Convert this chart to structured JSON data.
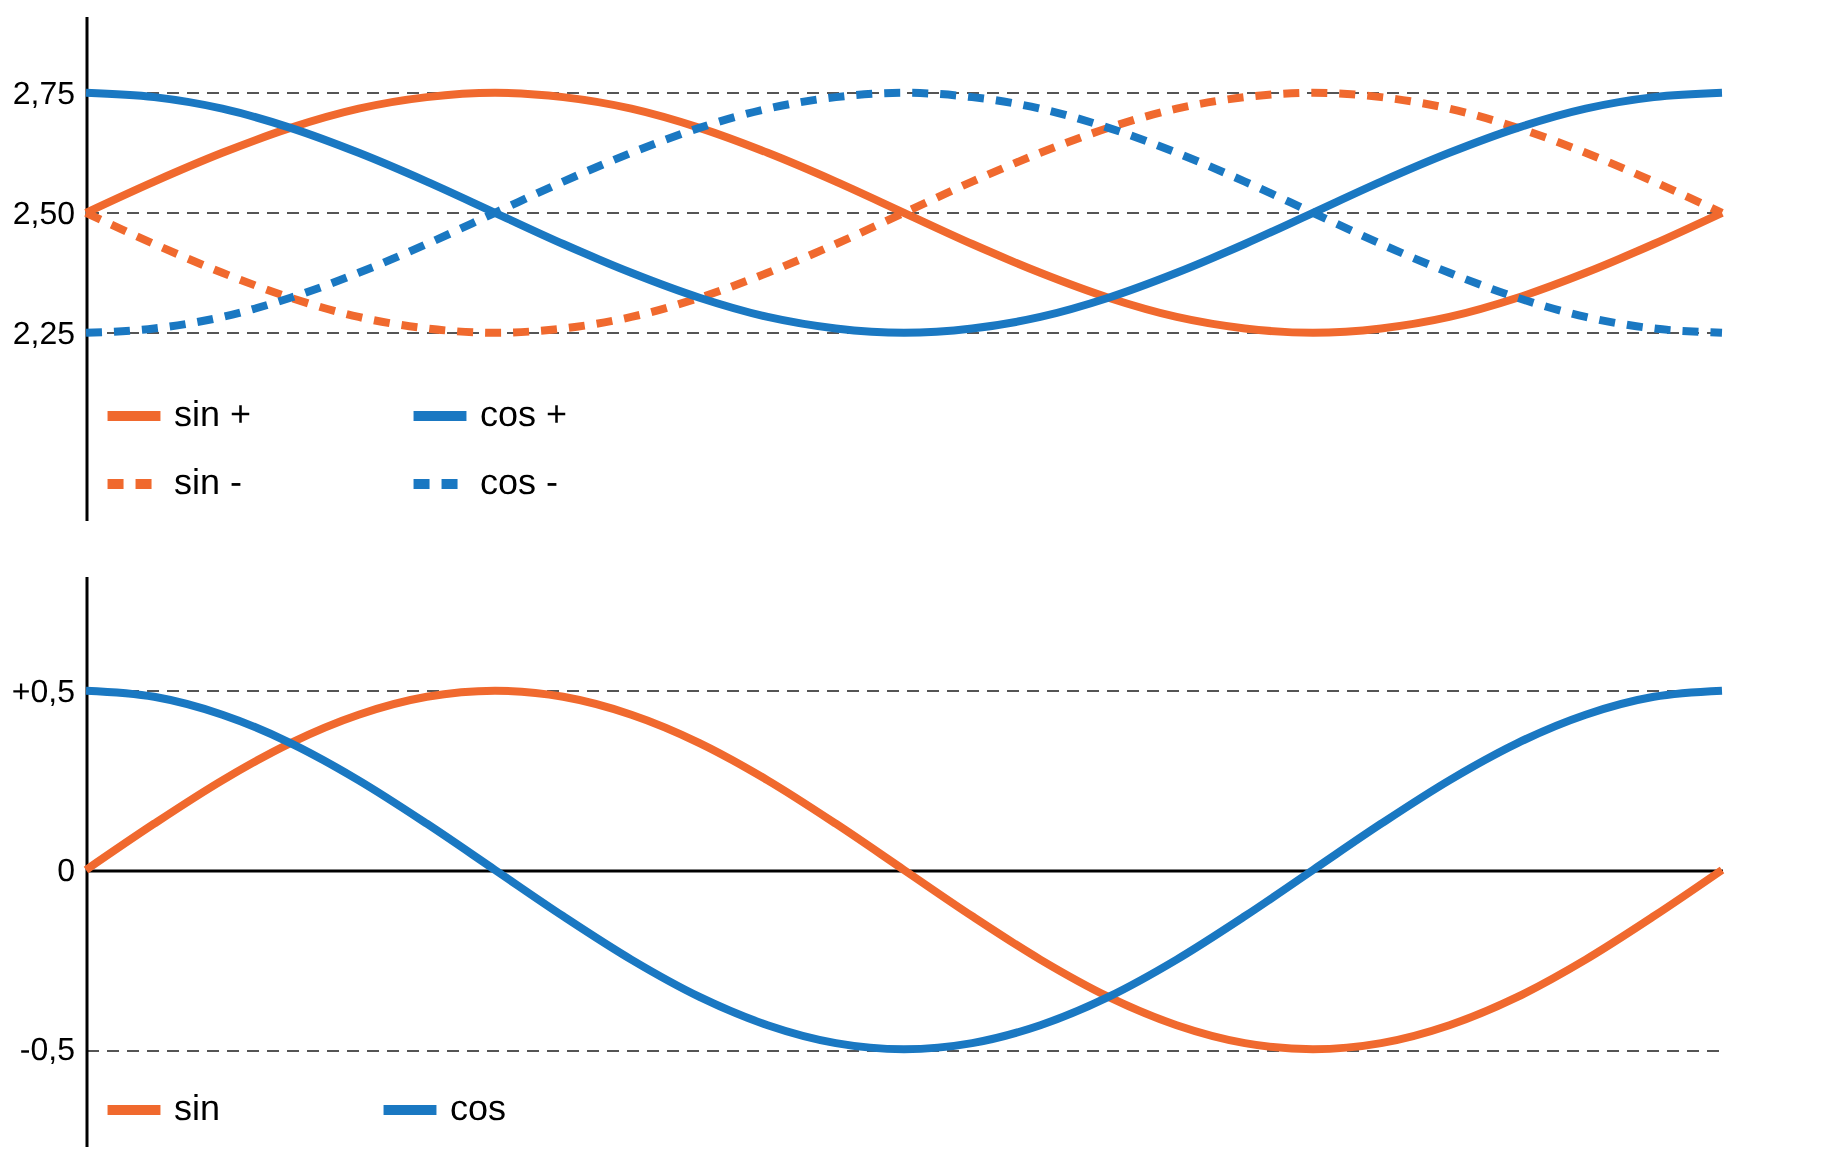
{
  "chart_data": [
    {
      "type": "line",
      "categories": [
        null,
        null,
        null,
        null,
        null,
        null,
        null,
        null,
        null,
        null,
        null,
        null,
        null,
        null,
        null,
        null,
        null,
        null,
        null,
        null,
        null,
        null,
        null,
        null,
        null
      ],
      "ylim": [
        1.86,
        2.91
      ],
      "yticks": [
        {
          "value": 2.25,
          "label": "2,25"
        },
        {
          "value": 2.5,
          "label": "2,50"
        },
        {
          "value": 2.75,
          "label": "2,75"
        }
      ],
      "grid": "y",
      "legend": "bottom left",
      "series": [
        {
          "name": "sin +",
          "color": "#f0692e",
          "line_style": "solid",
          "values": [
            2.5,
            2.565,
            2.625,
            2.677,
            2.717,
            2.741,
            2.75,
            2.741,
            2.717,
            2.677,
            2.625,
            2.565,
            2.5,
            2.435,
            2.375,
            2.323,
            2.283,
            2.259,
            2.25,
            2.259,
            2.283,
            2.323,
            2.375,
            2.435,
            2.5
          ]
        },
        {
          "name": "sin -",
          "color": "#f0692e",
          "line_style": "dashed",
          "values": [
            2.5,
            2.435,
            2.375,
            2.323,
            2.283,
            2.259,
            2.25,
            2.259,
            2.283,
            2.323,
            2.375,
            2.435,
            2.5,
            2.565,
            2.625,
            2.677,
            2.717,
            2.741,
            2.75,
            2.741,
            2.717,
            2.677,
            2.625,
            2.565,
            2.5
          ]
        },
        {
          "name": "cos +",
          "color": "#1a78c2",
          "line_style": "solid",
          "values": [
            2.75,
            2.741,
            2.717,
            2.677,
            2.625,
            2.565,
            2.5,
            2.435,
            2.375,
            2.323,
            2.283,
            2.259,
            2.25,
            2.259,
            2.283,
            2.323,
            2.375,
            2.435,
            2.5,
            2.565,
            2.625,
            2.677,
            2.717,
            2.741,
            2.75
          ]
        },
        {
          "name": "cos -",
          "color": "#1a78c2",
          "line_style": "dashed",
          "values": [
            2.25,
            2.259,
            2.283,
            2.323,
            2.375,
            2.435,
            2.5,
            2.565,
            2.625,
            2.677,
            2.717,
            2.741,
            2.75,
            2.741,
            2.717,
            2.677,
            2.625,
            2.565,
            2.5,
            2.435,
            2.375,
            2.323,
            2.283,
            2.259,
            2.25
          ]
        }
      ]
    },
    {
      "type": "line",
      "categories": [
        null,
        null,
        null,
        null,
        null,
        null,
        null,
        null,
        null,
        null,
        null,
        null,
        null,
        null,
        null,
        null,
        null,
        null,
        null,
        null,
        null,
        null,
        null,
        null,
        null
      ],
      "ylim": [
        -0.77,
        0.82
      ],
      "yticks": [
        {
          "value": -0.5,
          "label": "-0,5"
        },
        {
          "value": 0,
          "label": "0"
        },
        {
          "value": 0.5,
          "label": "+0,5"
        }
      ],
      "grid": "y",
      "legend": "bottom left",
      "series": [
        {
          "name": "sin",
          "color": "#f0692e",
          "line_style": "solid",
          "values": [
            0,
            0.129,
            0.25,
            0.354,
            0.433,
            0.483,
            0.5,
            0.483,
            0.433,
            0.354,
            0.25,
            0.129,
            0,
            -0.129,
            -0.25,
            -0.354,
            -0.433,
            -0.483,
            -0.5,
            -0.483,
            -0.433,
            -0.354,
            -0.25,
            -0.129,
            0
          ]
        },
        {
          "name": "cos",
          "color": "#1a78c2",
          "line_style": "solid",
          "values": [
            0.5,
            0.483,
            0.433,
            0.354,
            0.25,
            0.129,
            0,
            -0.129,
            -0.25,
            -0.354,
            -0.433,
            -0.483,
            -0.5,
            -0.483,
            -0.433,
            -0.354,
            -0.25,
            -0.129,
            0,
            0.129,
            0.25,
            0.354,
            0.433,
            0.483,
            0.5
          ]
        }
      ]
    }
  ]
}
